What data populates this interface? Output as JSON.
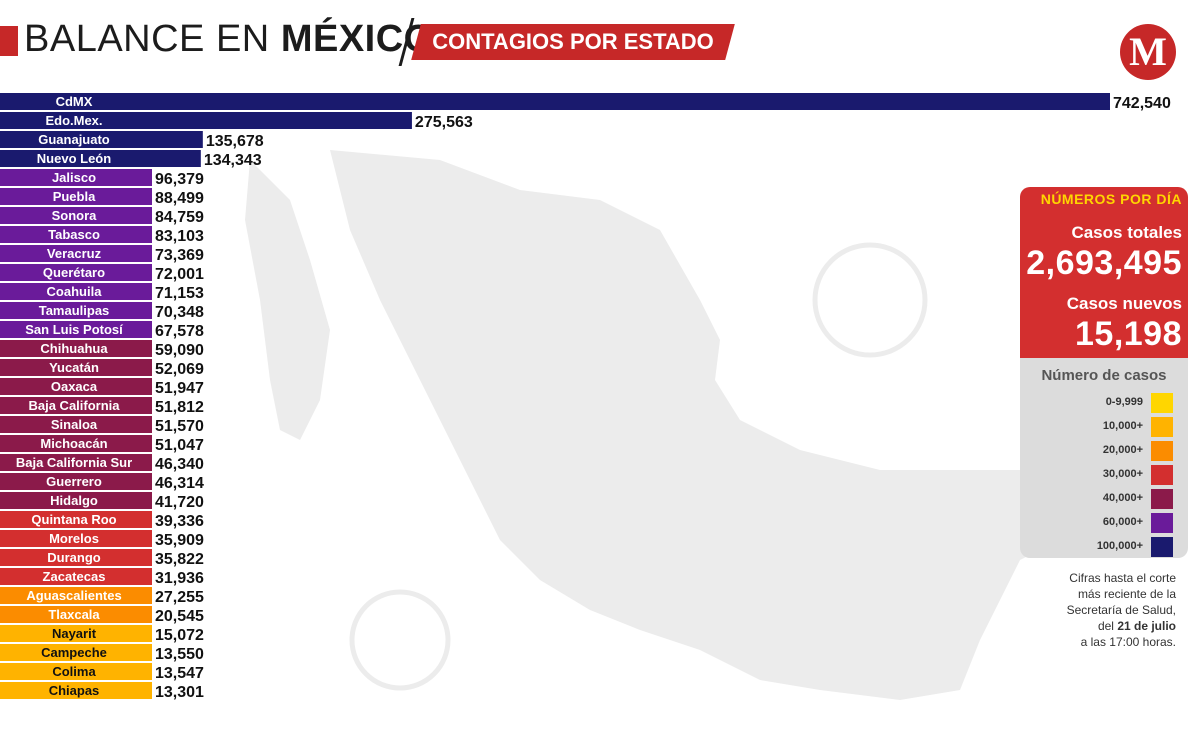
{
  "header": {
    "title_light": "BALANCE EN ",
    "title_bold": "MÉXICO",
    "subtitle": "CONTAGIOS POR ESTADO",
    "logo_letter": "M"
  },
  "panel": {
    "heading": "NÚMEROS POR DÍA",
    "total_label": "Casos totales",
    "total_value": "2,693,495",
    "new_label": "Casos nuevos",
    "new_value": "15,198"
  },
  "legend": {
    "title": "Número de casos",
    "items": [
      {
        "label": "0-9,999",
        "color": "#ffd600"
      },
      {
        "label": "10,000+",
        "color": "#ffb300"
      },
      {
        "label": "20,000+",
        "color": "#fb8c00"
      },
      {
        "label": "30,000+",
        "color": "#d32f2f"
      },
      {
        "label": "40,000+",
        "color": "#8b1a4a"
      },
      {
        "label": "60,000+",
        "color": "#6a1b9a"
      },
      {
        "label": "100,000+",
        "color": "#1a1a6e"
      }
    ]
  },
  "note": {
    "line1": "Cifras hasta el corte",
    "line2": "más reciente de la",
    "line3": "Secretaría de Salud,",
    "line4_pre": "del ",
    "line4_bold": "21 de julio",
    "line5": "a las 17:00 horas."
  },
  "chart_data": {
    "type": "bar",
    "orientation": "horizontal",
    "categories": [
      "CdMX",
      "Edo.Mex.",
      "Guanajuato",
      "Nuevo León",
      "Jalisco",
      "Puebla",
      "Sonora",
      "Tabasco",
      "Veracruz",
      "Querétaro",
      "Coahuila",
      "Tamaulipas",
      "San Luis Potosí",
      "Chihuahua",
      "Yucatán",
      "Oaxaca",
      "Baja California",
      "Sinaloa",
      "Michoacán",
      "Baja California Sur",
      "Guerrero",
      "Hidalgo",
      "Quintana Roo",
      "Morelos",
      "Durango",
      "Zacatecas",
      "Aguascalientes",
      "Tlaxcala",
      "Nayarit",
      "Campeche",
      "Colima",
      "Chiapas"
    ],
    "values": [
      742540,
      275563,
      135678,
      134343,
      96379,
      88499,
      84759,
      83103,
      73369,
      72001,
      71153,
      70348,
      67578,
      59090,
      52069,
      51947,
      51812,
      51570,
      51047,
      46340,
      46314,
      41720,
      39336,
      35909,
      35822,
      31936,
      27255,
      20545,
      15072,
      13550,
      13547,
      13301
    ],
    "value_labels": [
      "742,540",
      "275,563",
      "135,678",
      "134,343",
      "96,379",
      "88,499",
      "84,759",
      "83,103",
      "73,369",
      "72,001",
      "71,153",
      "70,348",
      "67,578",
      "59,090",
      "52,069",
      "51,947",
      "51,812",
      "51,570",
      "51,047",
      "46,340",
      "46,314",
      "41,720",
      "39,336",
      "35,909",
      "35,822",
      "31,936",
      "27,255",
      "20,545",
      "15,072",
      "13,550",
      "13,547",
      "13,301"
    ],
    "bar_colors": [
      "#1a1a6e",
      "#1a1a6e",
      "#1a1a6e",
      "#1a1a6e",
      "#6a1b9a",
      "#6a1b9a",
      "#6a1b9a",
      "#6a1b9a",
      "#6a1b9a",
      "#6a1b9a",
      "#6a1b9a",
      "#6a1b9a",
      "#6a1b9a",
      "#8b1a4a",
      "#8b1a4a",
      "#8b1a4a",
      "#8b1a4a",
      "#8b1a4a",
      "#8b1a4a",
      "#8b1a4a",
      "#8b1a4a",
      "#8b1a4a",
      "#d32f2f",
      "#d32f2f",
      "#d32f2f",
      "#d32f2f",
      "#fb8c00",
      "#fb8c00",
      "#ffb300",
      "#ffb300",
      "#ffb300",
      "#ffb300"
    ]
  }
}
